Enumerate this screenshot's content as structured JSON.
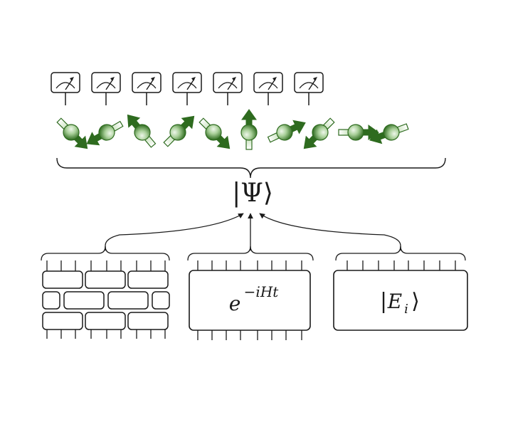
{
  "labels": {
    "psi": "|Ψ⟩",
    "evolution_base": "e",
    "evolution_exponent": "−iHt",
    "eigenstate_bar": "|",
    "eigenstate_E": "E",
    "eigenstate_sub": "i",
    "eigenstate_close": "⟩"
  },
  "colors": {
    "spin_dark": "#2e6b1f",
    "spin_light": "#a8cf98",
    "spin_highlight": "#e8f4e2",
    "line": "#1a1a1a"
  },
  "meters": {
    "count": 7,
    "icon": "measurement-meter-icon"
  },
  "spins": {
    "icon": "spin-arrow-icon",
    "directions": [
      -45,
      -150,
      130,
      45,
      -45,
      90,
      25,
      225,
      0,
      -160
    ]
  },
  "methods": [
    {
      "name": "tensor-network-circuit"
    },
    {
      "name": "time-evolution-operator"
    },
    {
      "name": "energy-eigenstate"
    }
  ]
}
